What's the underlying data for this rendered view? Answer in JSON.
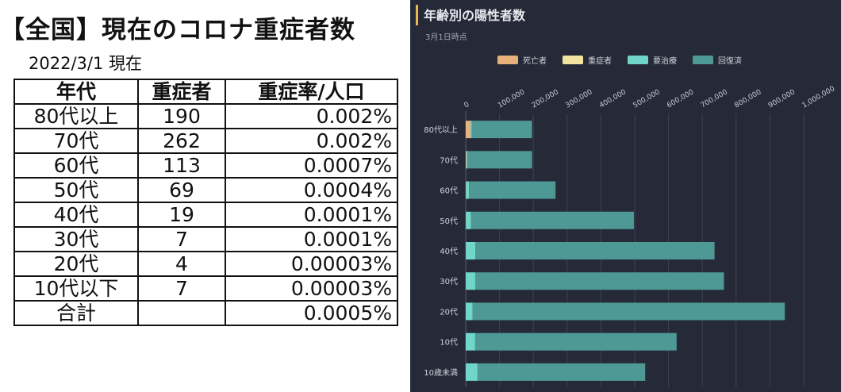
{
  "left": {
    "title": "【全国】現在のコロナ重症者数",
    "date": "2022/3/1 現在",
    "headers": [
      "年代",
      "重症者",
      "重症率/人口"
    ],
    "rows": [
      [
        "80代以上",
        "190",
        "0.002%"
      ],
      [
        "70代",
        "262",
        "0.002%"
      ],
      [
        "60代",
        "113",
        "0.0007%"
      ],
      [
        "50代",
        "69",
        "0.0004%"
      ],
      [
        "40代",
        "19",
        "0.0001%"
      ],
      [
        "30代",
        "7",
        "0.0001%"
      ],
      [
        "20代",
        "4",
        "0.00003%"
      ],
      [
        "10代以下",
        "7",
        "0.00003%"
      ],
      [
        "合計",
        "",
        "0.0005%"
      ]
    ]
  },
  "right": {
    "title": "年齢別の陽性者数",
    "subtitle": "3月1日時点",
    "accent_color": "#e9b84a"
  },
  "chart_data": {
    "type": "bar",
    "orientation": "horizontal",
    "stacked": true,
    "title": "年齢別の陽性者数",
    "subtitle": "3月1日時点",
    "legend_position": "top",
    "grid": true,
    "xlim": [
      0,
      1000000
    ],
    "x_ticks": [
      "0",
      "100,000",
      "200,000",
      "300,000",
      "400,000",
      "500,000",
      "600,000",
      "700,000",
      "800,000",
      "900,000",
      "1,000,000"
    ],
    "categories": [
      "80代以上",
      "70代",
      "60代",
      "50代",
      "40代",
      "30代",
      "20代",
      "10代",
      "10歳未満"
    ],
    "series": [
      {
        "name": "死亡者",
        "color": "#e8b07a",
        "values": [
          14000,
          2000,
          600,
          500,
          200,
          100,
          50,
          20,
          10
        ]
      },
      {
        "name": "重症者",
        "color": "#f3e3a0",
        "values": [
          200,
          260,
          110,
          70,
          20,
          7,
          4,
          4,
          3
        ]
      },
      {
        "name": "要治療",
        "color": "#6fd6c9",
        "values": [
          4000,
          3000,
          9000,
          15000,
          28000,
          28000,
          20000,
          28000,
          35000
        ]
      },
      {
        "name": "回復済",
        "color": "#4e9896",
        "values": [
          178000,
          191000,
          256000,
          482000,
          708000,
          736000,
          924000,
          596000,
          496000
        ]
      }
    ]
  }
}
